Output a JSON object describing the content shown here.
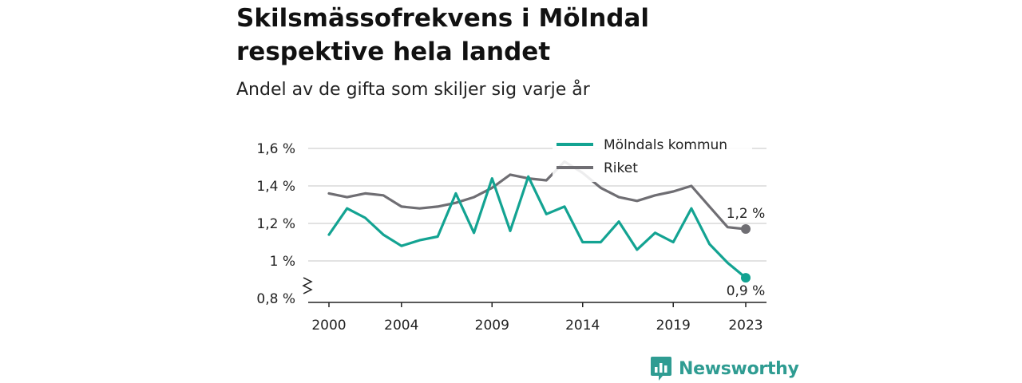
{
  "title": "Skilsmässofrekvens i Mölndal respektive hela landet",
  "subtitle": "Andel av de gifta som skiljer sig varje år",
  "brand": {
    "name": "Newsworthy",
    "icon": "newsworthy-logo-icon"
  },
  "colors": {
    "molndal": "#13a392",
    "riket": "#6f6e73",
    "grid": "#d9d9d9",
    "axis": "#222222"
  },
  "chart_data": {
    "type": "line",
    "title": "Skilsmässofrekvens i Mölndal respektive hela landet",
    "subtitle": "Andel av de gifta som skiljer sig varje år",
    "xlim": [
      2000,
      2023
    ],
    "ylim": [
      0.8,
      1.6
    ],
    "x_ticks": [
      2000,
      2004,
      2009,
      2014,
      2019,
      2023
    ],
    "x_tick_labels": [
      "2000",
      "2004",
      "2009",
      "2014",
      "2019",
      "2023"
    ],
    "y_ticks": [
      0.8,
      1.0,
      1.2,
      1.4,
      1.6
    ],
    "y_tick_labels": [
      "0,8 %",
      "1 %",
      "1,2 %",
      "1,4 %",
      "1,6 %"
    ],
    "y_axis_break": true,
    "grid": "horizontal",
    "legend_position": "top-right",
    "x": [
      2000,
      2001,
      2002,
      2003,
      2004,
      2005,
      2006,
      2007,
      2008,
      2009,
      2010,
      2011,
      2012,
      2013,
      2014,
      2015,
      2016,
      2017,
      2018,
      2019,
      2020,
      2021,
      2022,
      2023
    ],
    "series": [
      {
        "name": "Mölndals kommun",
        "color": "#13a392",
        "values": [
          1.14,
          1.28,
          1.23,
          1.14,
          1.08,
          1.11,
          1.13,
          1.36,
          1.15,
          1.44,
          1.16,
          1.45,
          1.25,
          1.29,
          1.1,
          1.1,
          1.21,
          1.06,
          1.15,
          1.1,
          1.28,
          1.09,
          0.99,
          0.91
        ],
        "end_label": "0,9 %"
      },
      {
        "name": "Riket",
        "color": "#6f6e73",
        "values": [
          1.36,
          1.34,
          1.36,
          1.35,
          1.29,
          1.28,
          1.29,
          1.31,
          1.34,
          1.39,
          1.46,
          1.44,
          1.43,
          1.53,
          1.47,
          1.39,
          1.34,
          1.32,
          1.35,
          1.37,
          1.4,
          1.29,
          1.18,
          1.17
        ],
        "end_label": "1,2 %"
      }
    ]
  }
}
